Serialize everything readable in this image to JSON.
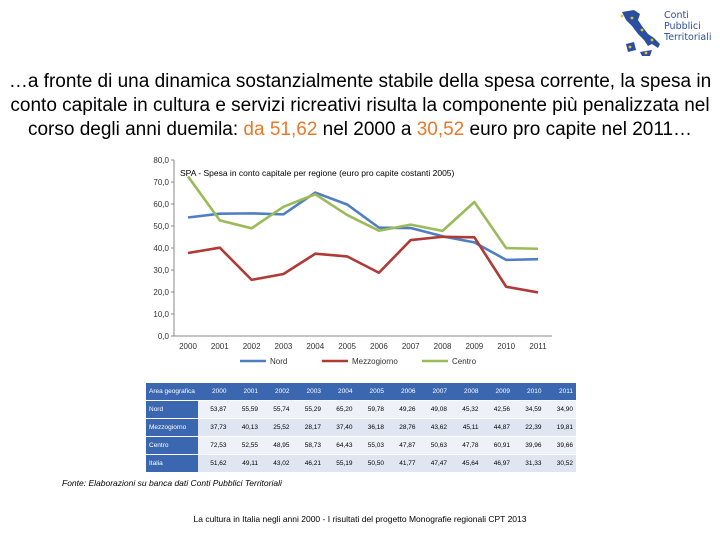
{
  "logo": {
    "line1": "Conti",
    "line2": "Pubblici",
    "line3": "Territoriali"
  },
  "headline": {
    "part1": "…a fronte di una dinamica sostanzialmente stabile della spesa corrente, la spesa in conto capitale in cultura e servizi ricreativi risulta la componente più penalizzata nel corso degli anni duemila: ",
    "hl1": "da 51,62",
    "part2": " nel 2000 a ",
    "hl2": "30,52",
    "part3": " euro pro capite nel 2011…"
  },
  "colors": {
    "nord": "#4f7fc2",
    "mezzogiorno": "#b03a35",
    "centro": "#9bbb59",
    "highlight": "#e8792a",
    "table_header": "#3a67b0"
  },
  "chart_data": {
    "type": "line",
    "title": "SPA - Spesa in conto capitale per regione (euro pro capite costanti 2005)",
    "x": [
      "2000",
      "2001",
      "2002",
      "2003",
      "2004",
      "2005",
      "2006",
      "2007",
      "2008",
      "2009",
      "2010",
      "2011"
    ],
    "yticks": [
      "80,0",
      "70,0",
      "60,0",
      "50,0",
      "40,0",
      "30,0",
      "20,0",
      "10,0",
      "0,0"
    ],
    "ylim": [
      0,
      80
    ],
    "legend_position": "bottom",
    "series": [
      {
        "name": "Nord",
        "key": "nord",
        "values": [
          53.87,
          55.59,
          55.74,
          55.29,
          65.2,
          59.78,
          49.26,
          49.08,
          45.32,
          42.56,
          34.59,
          34.9
        ]
      },
      {
        "name": "Mezzogiorno",
        "key": "mezzogiorno",
        "values": [
          37.73,
          40.13,
          25.52,
          28.17,
          37.4,
          36.18,
          28.76,
          43.62,
          45.11,
          44.87,
          22.39,
          19.81
        ]
      },
      {
        "name": "Centro",
        "key": "centro",
        "values": [
          72.53,
          52.55,
          48.95,
          58.73,
          64.43,
          55.03,
          47.87,
          50.63,
          47.78,
          60.91,
          39.96,
          39.66
        ]
      }
    ]
  },
  "table": {
    "header": "Area geografica",
    "years": [
      "2000",
      "2001",
      "2002",
      "2003",
      "2004",
      "2005",
      "2006",
      "2007",
      "2008",
      "2009",
      "2010",
      "2011"
    ],
    "rows": [
      {
        "label": "Nord",
        "values": [
          "53,87",
          "55,59",
          "55,74",
          "55,29",
          "65,20",
          "59,78",
          "49,26",
          "49,08",
          "45,32",
          "42,56",
          "34,59",
          "34,90"
        ]
      },
      {
        "label": "Mezzogiorno",
        "values": [
          "37,73",
          "40,13",
          "25,52",
          "28,17",
          "37,40",
          "36,18",
          "28,76",
          "43,62",
          "45,11",
          "44,87",
          "22,39",
          "19,81"
        ]
      },
      {
        "label": "Centro",
        "values": [
          "72,53",
          "52,55",
          "48,95",
          "58,73",
          "64,43",
          "55,03",
          "47,87",
          "50,63",
          "47,78",
          "60,91",
          "39,96",
          "39,66"
        ]
      },
      {
        "label": "Italia",
        "values": [
          "51,62",
          "49,11",
          "43,02",
          "46,21",
          "55,19",
          "50,50",
          "41,77",
          "47,47",
          "45,64",
          "46,97",
          "31,33",
          "30,52"
        ]
      }
    ]
  },
  "source": "Fonte: Elaborazioni su banca dati Conti Pubblici Territoriali",
  "footer": "La cultura in Italia negli anni 2000 - I risultati del progetto Monografie regionali CPT 2013"
}
